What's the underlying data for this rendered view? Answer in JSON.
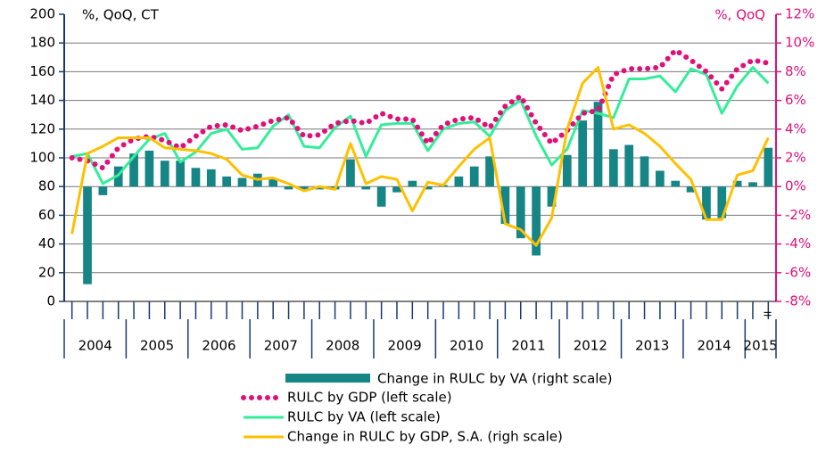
{
  "chart_data": {
    "type": "bar-line",
    "y_label": "%, QoQ, CT",
    "y2_label": "%, QoQ",
    "categories": [
      null,
      null,
      null,
      null,
      null,
      null,
      null,
      null,
      null,
      null,
      null,
      null,
      null,
      null,
      null,
      null,
      null,
      null,
      null,
      null,
      null,
      null,
      null,
      null,
      null,
      null,
      null,
      null,
      null,
      null,
      null,
      null,
      null,
      null,
      null,
      null,
      null,
      null,
      null,
      null,
      null,
      null,
      null,
      null,
      null,
      "II"
    ],
    "year_labels": [
      "2004",
      "2005",
      "2006",
      "2007",
      "2008",
      "2009",
      "2010",
      "2011",
      "2012",
      "2013",
      "2014",
      "2015"
    ],
    "ylim": [
      0,
      200
    ],
    "yticks": [
      0,
      20,
      40,
      60,
      80,
      100,
      120,
      140,
      160,
      180,
      200
    ],
    "y2lim": [
      -8,
      12
    ],
    "y2ticks": [
      {
        "value": -8,
        "label": "-8%"
      },
      {
        "value": -6,
        "label": "-6%"
      },
      {
        "value": -4,
        "label": "-4%"
      },
      {
        "value": -2,
        "label": "-2%"
      },
      {
        "value": 0,
        "label": "0%"
      },
      {
        "value": 2,
        "label": "2%"
      },
      {
        "value": 4,
        "label": "4%"
      },
      {
        "value": 6,
        "label": "6%"
      },
      {
        "value": 8,
        "label": "8%"
      },
      {
        "value": 10,
        "label": "10%"
      },
      {
        "value": 12,
        "label": "12%"
      }
    ],
    "grid": true,
    "series": [
      {
        "name": "Change in RULC by VA (right scale)",
        "kind": "bar",
        "axis": "y2",
        "color": "#168585",
        "values": [
          0,
          -6.8,
          -0.6,
          1.4,
          2.3,
          2.5,
          1.8,
          1.8,
          1.3,
          1.2,
          0.7,
          0.6,
          0.9,
          0.5,
          -0.2,
          -0.2,
          -0.2,
          -0.2,
          1.9,
          -0.2,
          -1.4,
          -0.4,
          0.4,
          -0.2,
          0.1,
          0.7,
          1.4,
          2.1,
          -2.6,
          -3.6,
          -4.8,
          -1.4,
          2.2,
          4.6,
          5.9,
          2.6,
          2.9,
          2.1,
          1.1,
          0.4,
          -0.4,
          -2.3,
          -2.2,
          0.4,
          0.3,
          2.7
        ]
      },
      {
        "name": "RULC by GDP (left scale)",
        "kind": "dots",
        "color": "#e0107a",
        "values": [
          100,
          98,
          93,
          107,
          113,
          115,
          112,
          107,
          115,
          122,
          123,
          119,
          122,
          126,
          128,
          115,
          116,
          124,
          126,
          124,
          131,
          127,
          127,
          110,
          123,
          127,
          128,
          121,
          136,
          143,
          124,
          110,
          119,
          131,
          133,
          158,
          162,
          162,
          163,
          175,
          168,
          160,
          148,
          162,
          168,
          166
        ]
      },
      {
        "name": "RULC by VA (left scale)",
        "kind": "line",
        "color": "#33ee99",
        "values": [
          101,
          103,
          82,
          88,
          101,
          113,
          117,
          97,
          104,
          117,
          120,
          106,
          107,
          122,
          130,
          108,
          107,
          121,
          129,
          101,
          123,
          124,
          124,
          105,
          120,
          124,
          125,
          115,
          133,
          140,
          115,
          95,
          106,
          133,
          131,
          128,
          155,
          155,
          157,
          146,
          162,
          158,
          131,
          150,
          163,
          152
        ]
      },
      {
        "name": "Change in RULC by GDP, S.A. (righ scale)",
        "kind": "line",
        "axis": "y2",
        "color": "#ffc000",
        "values": [
          -3.3,
          2.3,
          2.8,
          3.4,
          3.4,
          3.4,
          2.7,
          2.6,
          2.5,
          2.3,
          1.9,
          0.8,
          0.5,
          0.6,
          0.2,
          -0.3,
          0,
          -0.2,
          3.0,
          0.2,
          0.7,
          0.5,
          -1.7,
          0.3,
          0.1,
          1.4,
          2.6,
          3.4,
          -2.6,
          -3.0,
          -4.1,
          -2.2,
          4.0,
          7.2,
          8.3,
          4.0,
          4.3,
          3.7,
          2.8,
          1.6,
          0.5,
          -2.3,
          -2.3,
          0.8,
          1.1,
          3.4
        ]
      }
    ]
  }
}
